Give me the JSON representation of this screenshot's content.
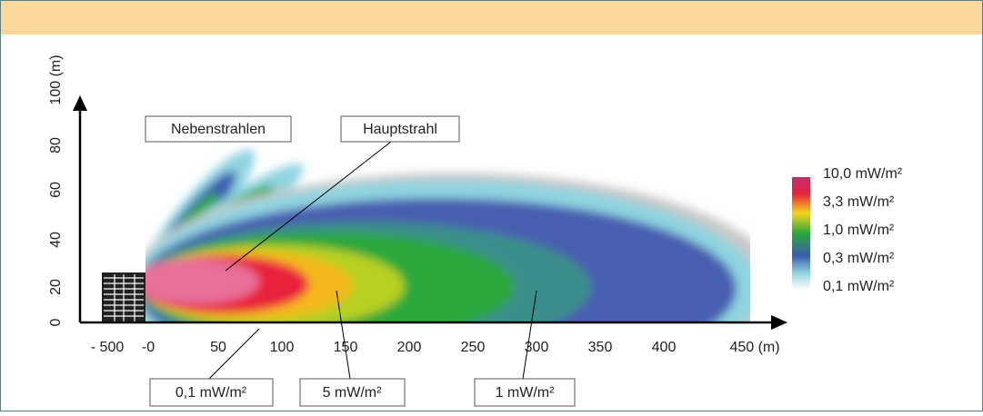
{
  "y_ticks": [
    "0",
    "20",
    "40",
    "60",
    "80",
    "100 (m)"
  ],
  "x_ticks": [
    "- 500",
    "-0",
    "50",
    "100",
    "150",
    "200",
    "250",
    "300",
    "350",
    "400",
    "450 (m)"
  ],
  "legend": [
    "10,0 mW/m²",
    "3,3 mW/m²",
    "1,0 mW/m²",
    "0,3 mW/m²",
    "0,1 mW/m²"
  ],
  "callouts": {
    "side_lobes": "Nebenstrahlen",
    "main_beam": "Hauptstrahl",
    "low": "0,1 mW/m²",
    "mid": "5 mW/m²",
    "far": "1 mW/m²"
  }
}
